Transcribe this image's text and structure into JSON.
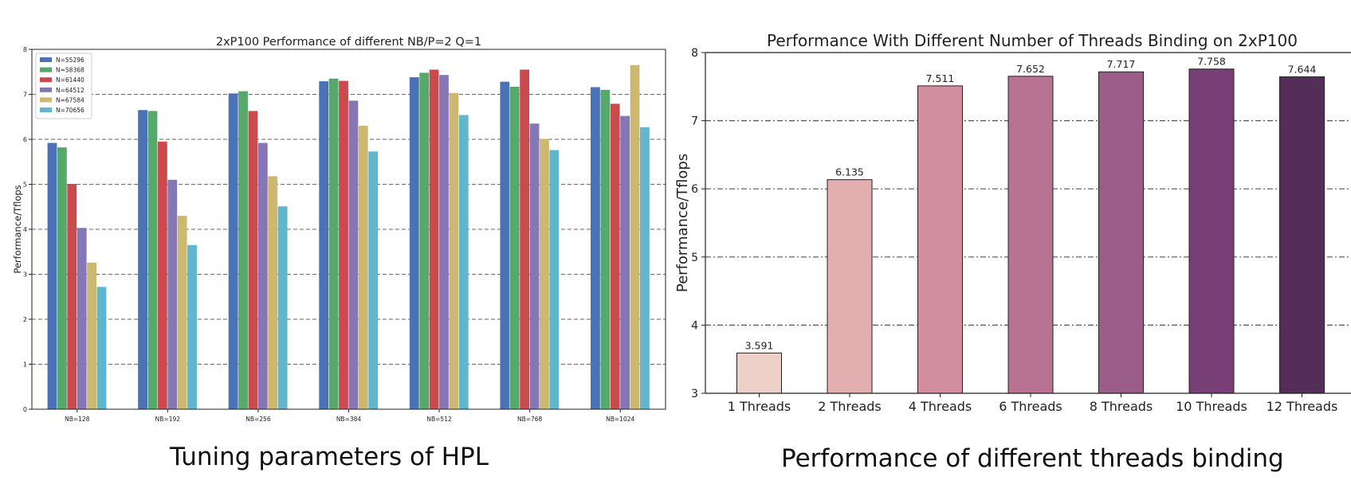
{
  "captions": {
    "left": "Tuning parameters of HPL",
    "right": "Performance of different threads binding"
  },
  "chart_data": [
    {
      "type": "bar",
      "title": "2xP100 Performance of different NB/P=2 Q=1",
      "xlabel": "",
      "ylabel": "Performance/Tflops",
      "ylim": [
        0,
        8
      ],
      "yticks": [
        0,
        1,
        2,
        3,
        4,
        5,
        6,
        7,
        8
      ],
      "grid": "horizontal dashed",
      "legend": "top-left",
      "categories": [
        "NB=128",
        "NB=192",
        "NB=256",
        "NB=384",
        "NB=512",
        "NB=768",
        "NB=1024"
      ],
      "series": [
        {
          "name": "N=55296",
          "color": "#4a72b5",
          "values": [
            5.92,
            6.65,
            7.02,
            7.29,
            7.38,
            7.28,
            7.16
          ]
        },
        {
          "name": "N=58368",
          "color": "#56a96a",
          "values": [
            5.82,
            6.63,
            7.07,
            7.35,
            7.48,
            7.17,
            7.1
          ]
        },
        {
          "name": "N=61440",
          "color": "#c94b4e",
          "values": [
            5.01,
            5.95,
            6.63,
            7.3,
            7.55,
            7.55,
            6.79
          ]
        },
        {
          "name": "N=64512",
          "color": "#8676b6",
          "values": [
            4.03,
            5.1,
            5.92,
            6.86,
            7.43,
            6.35,
            6.52
          ]
        },
        {
          "name": "N=67584",
          "color": "#cdb86f",
          "values": [
            3.26,
            4.3,
            5.18,
            6.3,
            7.03,
            6.01,
            7.65
          ]
        },
        {
          "name": "N=70656",
          "color": "#60b6cd",
          "values": [
            2.72,
            3.65,
            4.51,
            5.73,
            6.54,
            5.76,
            6.27
          ]
        }
      ]
    },
    {
      "type": "bar",
      "title": "Performance With Different Number of Threads Binding on 2xP100",
      "xlabel": "",
      "ylabel": "Performance/Tflops",
      "ylim": [
        3,
        8
      ],
      "yticks": [
        3,
        4,
        5,
        6,
        7,
        8
      ],
      "grid": "horizontal dashed",
      "categories": [
        "1 Threads",
        "2 Threads",
        "4 Threads",
        "6 Threads",
        "8 Threads",
        "10 Threads",
        "12 Threads"
      ],
      "values": [
        3.591,
        6.135,
        7.511,
        7.652,
        7.717,
        7.758,
        7.644
      ],
      "value_labels": [
        "3.591",
        "6.135",
        "7.511",
        "7.652",
        "7.717",
        "7.758",
        "7.644"
      ],
      "colors": [
        "#edd0c8",
        "#e2aeb0",
        "#d08e9f",
        "#b87292",
        "#9a5c88",
        "#773f75",
        "#542e59"
      ]
    }
  ]
}
